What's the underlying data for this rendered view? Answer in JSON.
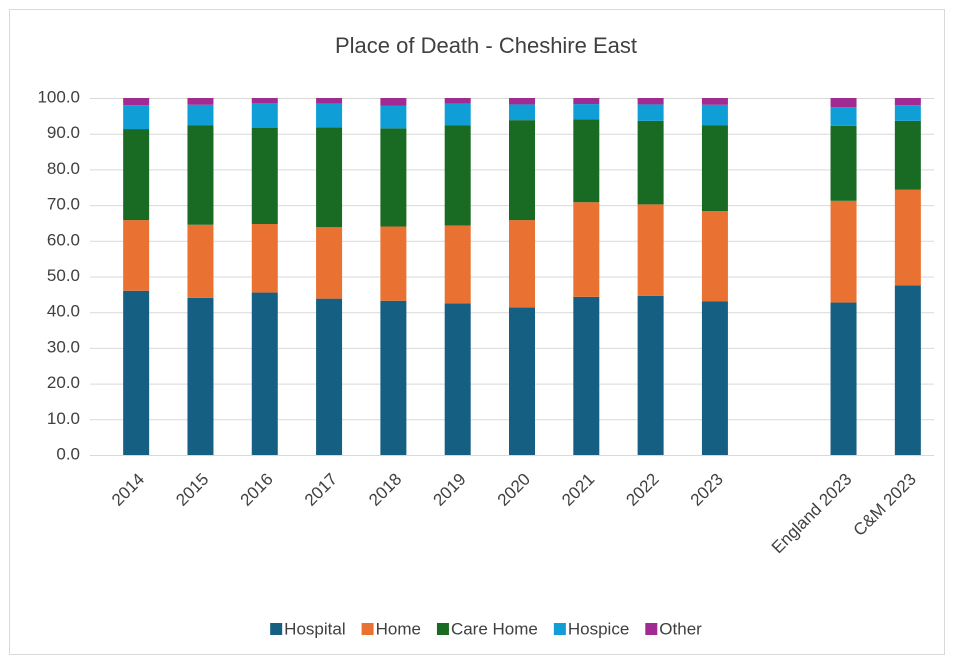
{
  "chart_data": {
    "type": "stacked_bar",
    "title": "Place of Death - Cheshire East",
    "categories": [
      "2014",
      "2015",
      "2016",
      "2017",
      "2018",
      "2019",
      "2020",
      "2021",
      "2022",
      "2023",
      null,
      "England 2023",
      "C&M 2023"
    ],
    "series": [
      {
        "name": "Hospital",
        "color": "#156082",
        "values": [
          46.0,
          44.0,
          45.5,
          43.8,
          43.2,
          42.5,
          41.3,
          44.3,
          44.6,
          43.0,
          null,
          42.7,
          47.5
        ]
      },
      {
        "name": "Home",
        "color": "#E97132",
        "values": [
          19.8,
          20.5,
          19.2,
          20.0,
          20.8,
          21.8,
          24.5,
          26.5,
          25.6,
          25.3,
          null,
          28.5,
          26.8
        ]
      },
      {
        "name": "Care Home",
        "color": "#196B24",
        "values": [
          25.5,
          27.8,
          27.0,
          28.0,
          27.5,
          28.0,
          28.0,
          23.2,
          23.4,
          24.1,
          null,
          21.0,
          19.3
        ]
      },
      {
        "name": "Hospice",
        "color": "#0F9ED5",
        "values": [
          6.7,
          5.8,
          6.9,
          6.6,
          6.4,
          6.1,
          4.4,
          4.3,
          4.6,
          5.7,
          null,
          5.2,
          4.4
        ]
      },
      {
        "name": "Other",
        "color": "#A02B93",
        "values": [
          2.0,
          1.9,
          1.4,
          1.6,
          2.1,
          1.6,
          1.8,
          1.7,
          1.8,
          1.9,
          null,
          2.6,
          2.0
        ]
      }
    ],
    "ylim": [
      0,
      100
    ],
    "yticks": [
      {
        "value": 0,
        "label": "0.0"
      },
      {
        "value": 10,
        "label": "10.0"
      },
      {
        "value": 20,
        "label": "20.0"
      },
      {
        "value": 30,
        "label": "30.0"
      },
      {
        "value": 40,
        "label": "40.0"
      },
      {
        "value": 50,
        "label": "50.0"
      },
      {
        "value": 60,
        "label": "60.0"
      },
      {
        "value": 70,
        "label": "70.0"
      },
      {
        "value": 80,
        "label": "80.0"
      },
      {
        "value": 90,
        "label": "90.0"
      },
      {
        "value": 100,
        "label": "100.0"
      }
    ],
    "grid": true,
    "legend": "bottom"
  }
}
